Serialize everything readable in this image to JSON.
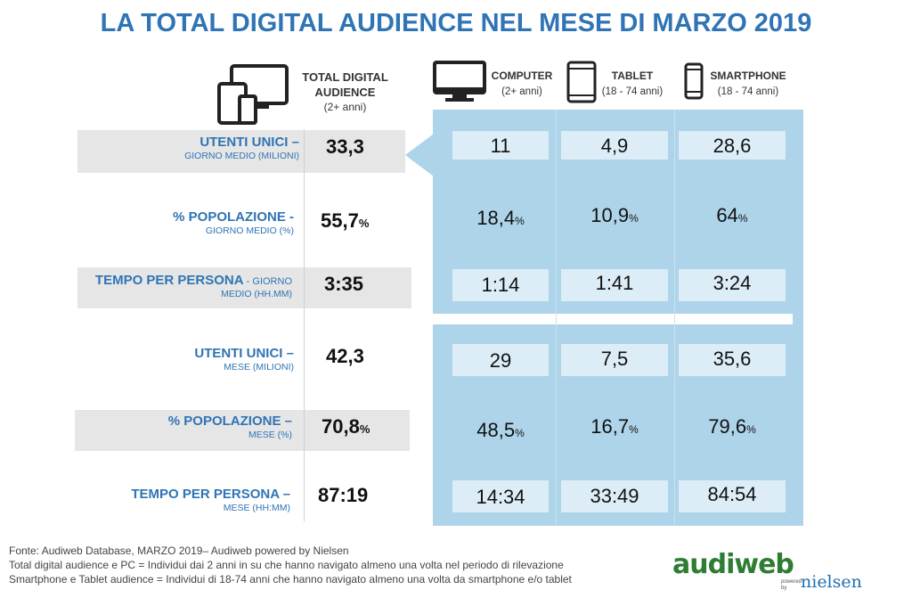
{
  "title": "LA TOTAL DIGITAL AUDIENCE NEL MESE DI MARZO 2019",
  "header": {
    "total": {
      "label": "TOTAL DIGITAL AUDIENCE",
      "sub": "(2+ anni)"
    },
    "computer": {
      "label": "COMPUTER",
      "sub": "(2+ anni)"
    },
    "tablet": {
      "label": "TABLET",
      "sub": "(18 - 74 anni)"
    },
    "smartphone": {
      "label": "SMARTPHONE",
      "sub": "(18 - 74 anni)"
    }
  },
  "rows": [
    {
      "main": "UTENTI UNICI",
      "dash": " –",
      "sub": "GIORNO MEDIO (MILIONI)",
      "total": "33,3",
      "total_unit": "",
      "computer": "11",
      "computer_unit": "",
      "tablet": "4,9",
      "tablet_unit": "",
      "smartphone": "28,6",
      "smartphone_unit": ""
    },
    {
      "main": "% POPOLAZIONE",
      "dash": " -",
      "sub": "GIORNO MEDIO (%)",
      "total": "55,7",
      "total_unit": "%",
      "computer": "18,4",
      "computer_unit": "%",
      "tablet": "10,9",
      "tablet_unit": "%",
      "smartphone": "64",
      "smartphone_unit": "%"
    },
    {
      "main": "TEMPO PER PERSONA",
      "dash": " - GIORNO",
      "sub": "MEDIO (HH.MM)",
      "total": "3:35",
      "total_unit": "",
      "computer": "1:14",
      "computer_unit": "",
      "tablet": "1:41",
      "tablet_unit": "",
      "smartphone": "3:24",
      "smartphone_unit": ""
    },
    {
      "main": "UTENTI UNICI",
      "dash": " –",
      "sub": "MESE (MILIONI)",
      "total": "42,3",
      "total_unit": "",
      "computer": "29",
      "computer_unit": "",
      "tablet": "7,5",
      "tablet_unit": "",
      "smartphone": "35,6",
      "smartphone_unit": ""
    },
    {
      "main": "% POPOLAZIONE",
      "dash": " –",
      "sub": "MESE (%)",
      "total": "70,8",
      "total_unit": "%",
      "computer": "48,5",
      "computer_unit": "%",
      "tablet": "16,7",
      "tablet_unit": "%",
      "smartphone": "79,6",
      "smartphone_unit": "%"
    },
    {
      "main": "TEMPO PER PERSONA",
      "dash": " –",
      "sub": "MESE (HH:MM)",
      "total": "87:19",
      "total_unit": "",
      "computer": "14:34",
      "computer_unit": "",
      "tablet": "33:49",
      "tablet_unit": "",
      "smartphone": "84:54",
      "smartphone_unit": ""
    }
  ],
  "footer": {
    "line1": "Fonte: Audiweb Database, MARZO 2019– Audiweb powered by Nielsen",
    "line2": "Total digital audience e PC = Individui dai 2 anni in su che hanno navigato almeno una volta nel periodo di rilevazione",
    "line3": "Smartphone e Tablet audience = Individui di 18-74 anni che hanno navigato almeno una volta da smartphone e/o tablet"
  },
  "logo": {
    "brand": "audiweb",
    "powered": "powered by",
    "partner": "nielsen"
  },
  "icons": [
    "multi-device-icon",
    "monitor-icon",
    "tablet-icon",
    "smartphone-icon"
  ],
  "colors": {
    "title": "#2f74b5",
    "panel": "#aed4ea",
    "cell": "#dcedf7",
    "gray_row": "#e6e6e6",
    "logo_green": "#2e7d32",
    "logo_blue": "#1f6fb2"
  }
}
